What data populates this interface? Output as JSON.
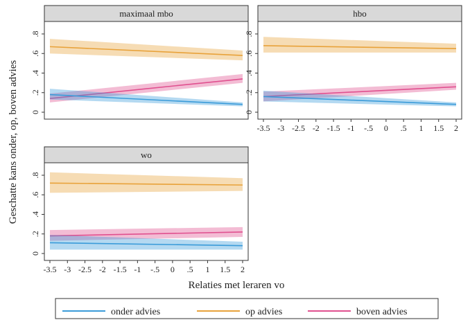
{
  "chart_data": {
    "type": "line",
    "ylabel": "Geschatte kans onder, op, boven advies",
    "xlabel": "Relaties met leraren vo",
    "x_ticks": [
      "-3.5",
      "-3",
      "-2.5",
      "-2",
      "-1.5",
      "-1",
      "-.5",
      "0",
      ".5",
      "1",
      "1.5",
      "2"
    ],
    "y_ticks": [
      "0",
      ".2",
      ".4",
      ".6",
      ".8"
    ],
    "xlim": [
      -3.5,
      2
    ],
    "ylim": [
      0,
      0.8
    ],
    "grid": false,
    "legend_position": "bottom",
    "legend": [
      {
        "key": "onder",
        "label": "onder advies",
        "color": "#3a9bd9"
      },
      {
        "key": "op",
        "label": "op advies",
        "color": "#e8a23a"
      },
      {
        "key": "boven",
        "label": "boven advies",
        "color": "#e0508f"
      }
    ],
    "panels": [
      {
        "title": "maximaal mbo",
        "series": [
          {
            "key": "op",
            "x": [
              -3.5,
              2
            ],
            "y": [
              0.67,
              0.58
            ],
            "lower": [
              0.6,
              0.53
            ],
            "upper": [
              0.75,
              0.63
            ]
          },
          {
            "key": "boven",
            "x": [
              -3.5,
              2
            ],
            "y": [
              0.14,
              0.34
            ],
            "lower": [
              0.1,
              0.3
            ],
            "upper": [
              0.19,
              0.39
            ]
          },
          {
            "key": "onder",
            "x": [
              -3.5,
              2
            ],
            "y": [
              0.18,
              0.08
            ],
            "lower": [
              0.13,
              0.06
            ],
            "upper": [
              0.24,
              0.1
            ]
          }
        ]
      },
      {
        "title": "hbo",
        "series": [
          {
            "key": "op",
            "x": [
              -3.5,
              2
            ],
            "y": [
              0.68,
              0.65
            ],
            "lower": [
              0.61,
              0.61
            ],
            "upper": [
              0.77,
              0.7
            ]
          },
          {
            "key": "boven",
            "x": [
              -3.5,
              2
            ],
            "y": [
              0.16,
              0.26
            ],
            "lower": [
              0.11,
              0.23
            ],
            "upper": [
              0.21,
              0.3
            ]
          },
          {
            "key": "onder",
            "x": [
              -3.5,
              2
            ],
            "y": [
              0.16,
              0.08
            ],
            "lower": [
              0.11,
              0.06
            ],
            "upper": [
              0.22,
              0.1
            ]
          }
        ]
      },
      {
        "title": "wo",
        "series": [
          {
            "key": "op",
            "x": [
              -3.5,
              2
            ],
            "y": [
              0.72,
              0.7
            ],
            "lower": [
              0.62,
              0.64
            ],
            "upper": [
              0.83,
              0.77
            ]
          },
          {
            "key": "boven",
            "x": [
              -3.5,
              2
            ],
            "y": [
              0.18,
              0.22
            ],
            "lower": [
              0.13,
              0.17
            ],
            "upper": [
              0.24,
              0.27
            ]
          },
          {
            "key": "onder",
            "x": [
              -3.5,
              2
            ],
            "y": [
              0.11,
              0.08
            ],
            "lower": [
              0.04,
              0.04
            ],
            "upper": [
              0.19,
              0.12
            ]
          }
        ]
      }
    ]
  }
}
